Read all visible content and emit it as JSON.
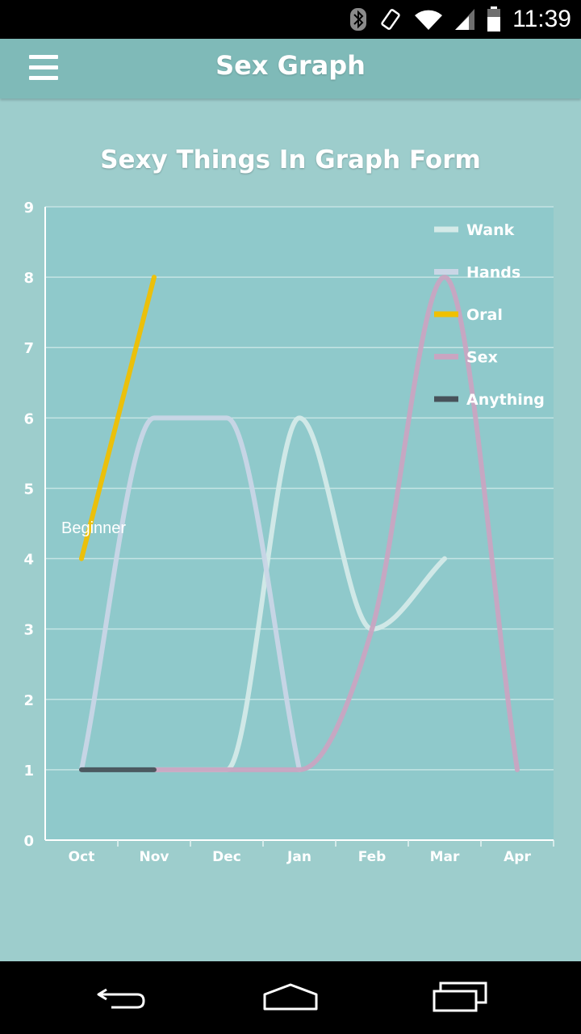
{
  "status_bar": {
    "time": "11:39",
    "icons": [
      "bluetooth-icon",
      "rotation-icon",
      "wifi-icon",
      "signal-icon",
      "battery-icon"
    ]
  },
  "app_bar": {
    "title": "Sex Graph",
    "menu_icon": "hamburger-menu-icon"
  },
  "chart_data": {
    "type": "line",
    "title": "Sexy Things In Graph Form",
    "categories": [
      "Oct",
      "Nov",
      "Dec",
      "Jan",
      "Feb",
      "Mar",
      "Apr"
    ],
    "ylim": [
      0,
      9
    ],
    "yticks": [
      0,
      1,
      2,
      3,
      4,
      5,
      6,
      7,
      8,
      9
    ],
    "grid": true,
    "legend_position": "top-right",
    "annotation": "Beginner",
    "series": [
      {
        "name": "Wank",
        "color": "#d4eae8",
        "points": [
          [
            1,
            1
          ],
          [
            2,
            1
          ],
          [
            3,
            6
          ],
          [
            4,
            3
          ],
          [
            5,
            4
          ]
        ]
      },
      {
        "name": "Hands",
        "color": "#c9d6e6",
        "points": [
          [
            0,
            1
          ],
          [
            1,
            6
          ],
          [
            2,
            6
          ],
          [
            3,
            1
          ]
        ]
      },
      {
        "name": "Oral",
        "color": "#f0c000",
        "points": [
          [
            0,
            4
          ],
          [
            1,
            8
          ]
        ]
      },
      {
        "name": "Sex",
        "color": "#c9a5c1",
        "points": [
          [
            1,
            1
          ],
          [
            2,
            1
          ],
          [
            3,
            1
          ],
          [
            4,
            3
          ],
          [
            5,
            8
          ],
          [
            6,
            1
          ]
        ]
      },
      {
        "name": "Anything",
        "color": "#47525a",
        "points": [
          [
            0,
            1
          ],
          [
            1,
            1
          ]
        ]
      }
    ]
  },
  "nav_bar": {
    "icons": [
      "back-icon",
      "home-icon",
      "recent-apps-icon"
    ]
  }
}
